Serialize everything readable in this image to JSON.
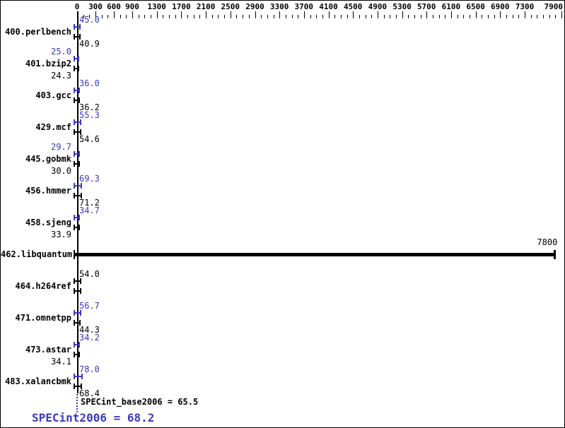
{
  "chart_data": {
    "type": "bar",
    "orientation": "horizontal",
    "title": "",
    "xlabel": "",
    "ylabel": "",
    "xlim": [
      0,
      7900
    ],
    "x_minor_tick_step": 100,
    "x_ticks_labeled": [
      0,
      300,
      600,
      900,
      1300,
      1700,
      2100,
      2500,
      2900,
      3300,
      3700,
      4100,
      4500,
      4900,
      5300,
      5700,
      6100,
      6500,
      6900,
      7300,
      7900
    ],
    "grid": false,
    "legend_position": "none",
    "categories": [
      "400.perlbench",
      "401.bzip2",
      "403.gcc",
      "429.mcf",
      "445.gobmk",
      "456.hmmer",
      "458.sjeng",
      "462.libquantum",
      "464.h264ref",
      "471.omnetpp",
      "473.astar",
      "483.xalancbmk"
    ],
    "series": [
      {
        "name": "SPECint2006",
        "color": "#3a3ab8",
        "values": [
          45.0,
          25.0,
          36.0,
          55.3,
          29.7,
          69.3,
          34.7,
          7800,
          54.0,
          56.7,
          34.2,
          78.0
        ]
      },
      {
        "name": "SPECint_base2006",
        "color": "#000000",
        "values": [
          40.9,
          24.3,
          36.2,
          54.6,
          30.0,
          71.2,
          33.9,
          7800,
          54.0,
          44.3,
          34.1,
          68.4
        ]
      }
    ],
    "annotations": [
      "SPECint_base2006 = 65.5",
      "SPECint2006 = 68.2"
    ]
  },
  "benchmarks": [
    {
      "name": "400.perlbench",
      "peak": 45.0,
      "base": 40.9,
      "top_label": {
        "text": "45.0",
        "color": "peak",
        "side": "right"
      },
      "bottom_label": {
        "text": "40.9",
        "color": "base",
        "side": "right"
      }
    },
    {
      "name": "401.bzip2",
      "peak": 25.0,
      "base": 24.3,
      "top_label": {
        "text": "25.0",
        "color": "peak",
        "side": "left"
      },
      "bottom_label": {
        "text": "24.3",
        "color": "base",
        "side": "left"
      }
    },
    {
      "name": "403.gcc",
      "peak": 36.0,
      "base": 36.2,
      "top_label": {
        "text": "36.0",
        "color": "peak",
        "side": "right"
      },
      "bottom_label": {
        "text": "36.2",
        "color": "base",
        "side": "right"
      }
    },
    {
      "name": "429.mcf",
      "peak": 55.3,
      "base": 54.6,
      "top_label": {
        "text": "55.3",
        "color": "peak",
        "side": "right"
      },
      "bottom_label": {
        "text": "54.6",
        "color": "base",
        "side": "right"
      }
    },
    {
      "name": "445.gobmk",
      "peak": 29.7,
      "base": 30.0,
      "top_label": {
        "text": "29.7",
        "color": "peak",
        "side": "left"
      },
      "bottom_label": {
        "text": "30.0",
        "color": "base",
        "side": "left"
      }
    },
    {
      "name": "456.hmmer",
      "peak": 69.3,
      "base": 71.2,
      "top_label": {
        "text": "69.3",
        "color": "peak",
        "side": "right"
      },
      "bottom_label": {
        "text": "71.2",
        "color": "base",
        "side": "right"
      }
    },
    {
      "name": "458.sjeng",
      "peak": 34.7,
      "base": 33.9,
      "top_label": {
        "text": "34.7",
        "color": "peak",
        "side": "right"
      },
      "bottom_label": {
        "text": "33.9",
        "color": "base",
        "side": "left"
      }
    },
    {
      "name": "462.libquantum",
      "peak": 7800,
      "base": 7800,
      "single_bar": true,
      "bars_color": "base",
      "top_label": {
        "text": "7800",
        "color": "base",
        "side": "bar_end"
      },
      "bottom_label": null
    },
    {
      "name": "464.h264ref",
      "peak": 54.0,
      "base": 54.0,
      "bars_color": "base",
      "top_label": {
        "text": "54.0",
        "color": "base",
        "side": "right"
      },
      "bottom_label": null
    },
    {
      "name": "471.omnetpp",
      "peak": 56.7,
      "base": 44.3,
      "top_label": {
        "text": "56.7",
        "color": "peak",
        "side": "right"
      },
      "bottom_label": {
        "text": "44.3",
        "color": "base",
        "side": "right"
      }
    },
    {
      "name": "473.astar",
      "peak": 34.2,
      "base": 34.1,
      "top_label": {
        "text": "34.2",
        "color": "peak",
        "side": "right"
      },
      "bottom_label": {
        "text": "34.1",
        "color": "base",
        "side": "left"
      }
    },
    {
      "name": "483.xalancbmk",
      "peak": 78.0,
      "base": 68.4,
      "top_label": {
        "text": "78.0",
        "color": "peak",
        "side": "right"
      },
      "bottom_label": {
        "text": "68.4",
        "color": "base",
        "side": "right"
      }
    }
  ],
  "summary": {
    "base_label": "SPECint_base2006 = 65.5",
    "peak_label": "SPECint2006 = 68.2",
    "base_value": 65.5,
    "peak_value": 68.2
  },
  "colors": {
    "peak_blue": "#3a3ab8",
    "base_black": "#000000",
    "background": "#ffffff"
  }
}
